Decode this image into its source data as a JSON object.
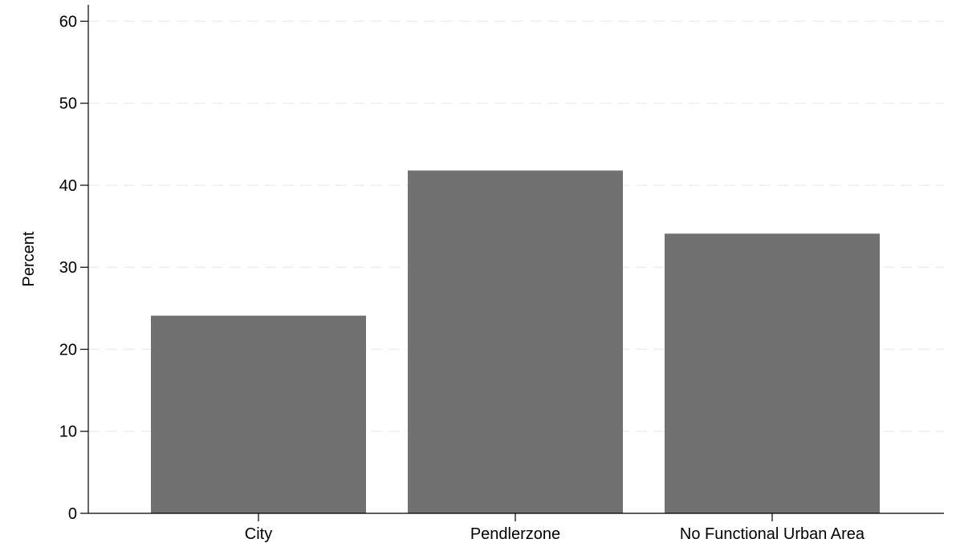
{
  "chart_data": {
    "type": "bar",
    "title": "",
    "xlabel": "",
    "ylabel": "Percent",
    "categories": [
      "City",
      "Pendlerzone",
      "No Functional Urban Area"
    ],
    "values": [
      24.1,
      41.8,
      34.1
    ],
    "ylim": [
      0,
      62
    ],
    "yticks": [
      0,
      10,
      20,
      30,
      40,
      50,
      60
    ],
    "grid": true,
    "legend": "none",
    "colors": {
      "bar": "#717171",
      "grid": "#eaeaea",
      "axis": "#000000",
      "background": "#ffffff"
    }
  }
}
